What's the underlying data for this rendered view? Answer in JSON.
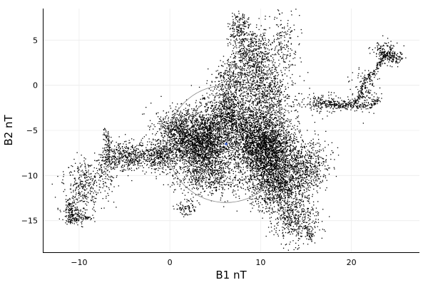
{
  "chart_data": {
    "type": "scatter",
    "title": "",
    "xlabel": "B1 nT",
    "ylabel": "B2 nT",
    "xlim": [
      -14,
      27.5
    ],
    "ylim": [
      -18.5,
      8.5
    ],
    "x_ticks": [
      -10,
      0,
      10,
      20
    ],
    "y_ticks": [
      5,
      0,
      -5,
      -10,
      -15
    ],
    "x_tick_labels": [
      "−10",
      "0",
      "10",
      "20"
    ],
    "y_tick_labels": [
      "5",
      "0",
      "−5",
      "−10",
      "−15"
    ],
    "grid": true,
    "legend": "none",
    "point_color": "#000000",
    "circle": {
      "center": [
        6.2,
        -6.5
      ],
      "radius": 6.5,
      "color": "#888888"
    },
    "center_marker": {
      "x": 6.2,
      "y": -6.5,
      "color": "#3a5fcd"
    },
    "cloud_clusters": [
      {
        "cx": 3.6,
        "cy": -6.5,
        "sx": 1.6,
        "sy": 1.8,
        "n": 2200
      },
      {
        "cx": 10.8,
        "cy": -7.2,
        "sx": 1.6,
        "sy": 2.0,
        "n": 2400
      },
      {
        "cx": 6.2,
        "cy": -3.0,
        "sx": 1.2,
        "sy": 1.4,
        "n": 700
      },
      {
        "cx": 8.5,
        "cy": -5.5,
        "sx": 1.5,
        "sy": 1.8,
        "n": 900
      },
      {
        "cx": 9.0,
        "cy": 3.5,
        "sx": 1.2,
        "sy": 1.5,
        "n": 600
      },
      {
        "cx": 10.5,
        "cy": -0.5,
        "sx": 1.5,
        "sy": 1.8,
        "n": 700
      },
      {
        "cx": 6.8,
        "cy": 0.5,
        "sx": 1.0,
        "sy": 1.2,
        "n": 300
      },
      {
        "cx": 12.0,
        "cy": -11.0,
        "sx": 1.6,
        "sy": 1.5,
        "n": 1000
      },
      {
        "cx": 13.8,
        "cy": -14.8,
        "sx": 1.3,
        "sy": 1.4,
        "n": 450
      },
      {
        "cx": 1.0,
        "cy": -5.0,
        "sx": 1.3,
        "sy": 1.3,
        "n": 650
      },
      {
        "cx": -1.2,
        "cy": -7.8,
        "sx": 1.1,
        "sy": 0.8,
        "n": 400
      },
      {
        "cx": -4.8,
        "cy": -7.8,
        "sx": 1.2,
        "sy": 0.8,
        "n": 400
      },
      {
        "cx": -9.5,
        "cy": -11.0,
        "sx": 1.0,
        "sy": 1.3,
        "n": 300
      },
      {
        "cx": -10.5,
        "cy": -14.2,
        "sx": 0.8,
        "sy": 0.6,
        "n": 120
      },
      {
        "cx": 15.2,
        "cy": -8.8,
        "sx": 1.2,
        "sy": 1.4,
        "n": 450
      },
      {
        "cx": 4.5,
        "cy": -10.3,
        "sx": 1.8,
        "sy": 1.0,
        "n": 400
      },
      {
        "cx": 7.5,
        "cy": 6.5,
        "sx": 0.6,
        "sy": 1.0,
        "n": 150
      },
      {
        "cx": 12.5,
        "cy": 4.5,
        "sx": 0.8,
        "sy": 2.0,
        "n": 150
      },
      {
        "cx": 16.5,
        "cy": -2.0,
        "sx": 1.5,
        "sy": 0.6,
        "n": 150
      },
      {
        "cx": 21.5,
        "cy": -0.5,
        "sx": 0.8,
        "sy": 1.2,
        "n": 120
      },
      {
        "cx": 24.0,
        "cy": 3.5,
        "sx": 0.8,
        "sy": 0.7,
        "n": 120
      },
      {
        "cx": 19.5,
        "cy": -2.0,
        "sx": 1.2,
        "sy": 0.4,
        "n": 80
      },
      {
        "cx": -7.0,
        "cy": -9.5,
        "sx": 0.7,
        "sy": 1.5,
        "n": 150
      },
      {
        "cx": 1.8,
        "cy": -13.5,
        "sx": 0.6,
        "sy": 0.6,
        "n": 80
      }
    ],
    "trails": [
      [
        [
          20.0,
          -2.0
        ],
        [
          21.0,
          -1.0
        ],
        [
          21.3,
          0.5
        ],
        [
          22.5,
          1.5
        ],
        [
          23.0,
          2.5
        ],
        [
          24.0,
          3.8
        ],
        [
          25.5,
          3.0
        ]
      ],
      [
        [
          23.0,
          4.5
        ],
        [
          23.5,
          3.5
        ],
        [
          25.0,
          2.5
        ]
      ],
      [
        [
          16.0,
          -1.8
        ],
        [
          18.0,
          -2.1
        ],
        [
          20.0,
          -2.2
        ],
        [
          22.0,
          -2.2
        ],
        [
          23.0,
          -1.5
        ]
      ],
      [
        [
          15.0,
          -15.5
        ],
        [
          15.5,
          -17.2
        ]
      ],
      [
        [
          -11.3,
          -12.5
        ],
        [
          -10.8,
          -14.0
        ],
        [
          -11.3,
          -15.0
        ],
        [
          -10.0,
          -14.8
        ],
        [
          -8.8,
          -14.6
        ]
      ],
      [
        [
          -7.2,
          -4.8
        ],
        [
          -6.8,
          -6.5
        ],
        [
          -7.0,
          -8.5
        ]
      ]
    ]
  }
}
